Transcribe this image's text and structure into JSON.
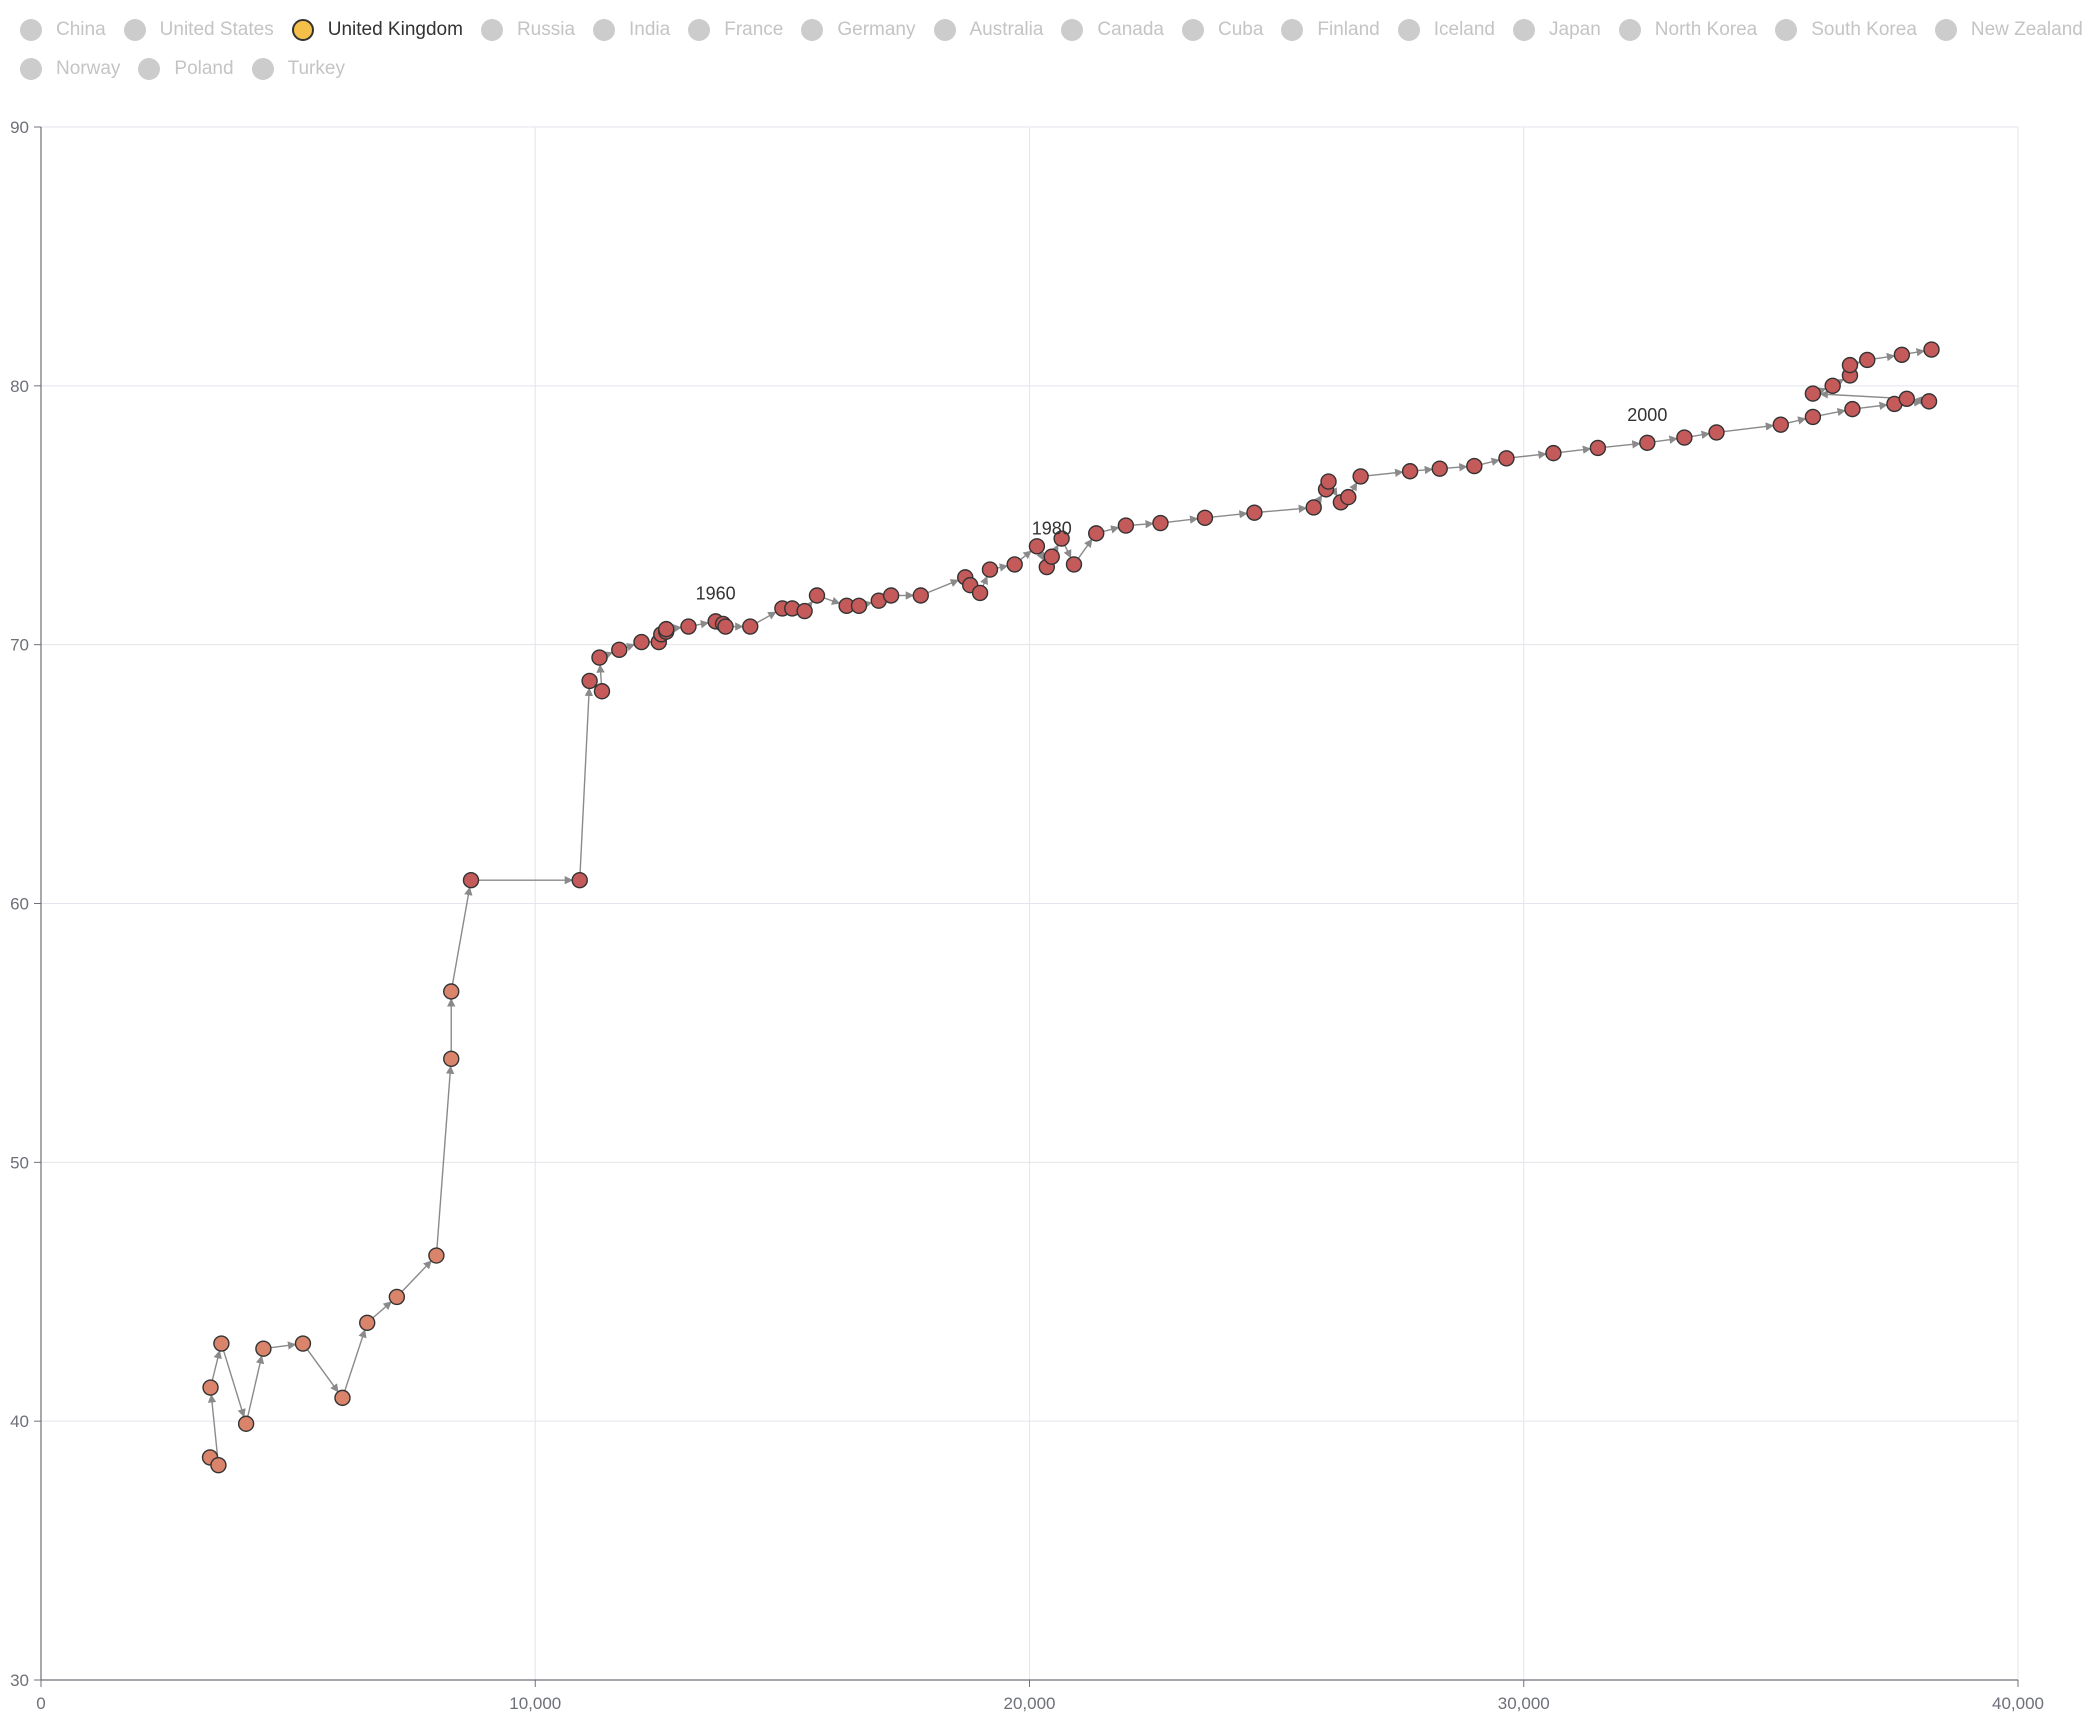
{
  "legend": {
    "items": [
      {
        "label": "China",
        "active": false
      },
      {
        "label": "United States",
        "active": false
      },
      {
        "label": "United Kingdom",
        "active": true
      },
      {
        "label": "Russia",
        "active": false
      },
      {
        "label": "India",
        "active": false
      },
      {
        "label": "France",
        "active": false
      },
      {
        "label": "Germany",
        "active": false
      },
      {
        "label": "Australia",
        "active": false
      },
      {
        "label": "Canada",
        "active": false
      },
      {
        "label": "Cuba",
        "active": false
      },
      {
        "label": "Finland",
        "active": false
      },
      {
        "label": "Iceland",
        "active": false
      },
      {
        "label": "Japan",
        "active": false
      },
      {
        "label": "North Korea",
        "active": false
      },
      {
        "label": "South Korea",
        "active": false
      },
      {
        "label": "New Zealand",
        "active": false
      },
      {
        "label": "Norway",
        "active": false
      },
      {
        "label": "Poland",
        "active": false
      },
      {
        "label": "Turkey",
        "active": false
      }
    ],
    "active_color": "#f5c04a",
    "inactive_color": "#cccccc"
  },
  "chart_data": {
    "type": "scatter",
    "title": "",
    "xlabel": "",
    "ylabel": "",
    "xlim": [
      0,
      40000
    ],
    "ylim": [
      30,
      90
    ],
    "x_ticks": [
      "0",
      "10,000",
      "20,000",
      "30,000",
      "40,000"
    ],
    "y_ticks": [
      "30",
      "40",
      "50",
      "60",
      "70",
      "80",
      "90"
    ],
    "grid": true,
    "series": [
      {
        "name": "United Kingdom",
        "color": "#c55a5a",
        "early_color": "#d9846b",
        "x": [
          3420,
          3590,
          3430,
          3650,
          4150,
          4500,
          5300,
          6100,
          6600,
          7200,
          8000,
          8300,
          8300,
          8700,
          10900,
          11100,
          11350,
          11300,
          11700,
          12150,
          12500,
          12550,
          12650,
          12650,
          13100,
          13650,
          13800,
          13850,
          14350,
          15000,
          15200,
          15450,
          15700,
          16300,
          16550,
          16950,
          17200,
          17800,
          18700,
          18800,
          19000,
          19200,
          19700,
          20150,
          20350,
          20450,
          20650,
          20900,
          21350,
          21950,
          22650,
          23550,
          24550,
          25750,
          26000,
          26050,
          26300,
          26450,
          26700,
          27700,
          28300,
          29000,
          29650,
          30600,
          31500,
          32500,
          33250,
          33900,
          35200,
          35850,
          36650,
          37500,
          38200,
          37750,
          35850,
          36250,
          36600,
          36600,
          36950,
          37650,
          38250
        ],
        "y": [
          38.6,
          38.3,
          41.3,
          43.0,
          39.9,
          42.8,
          43.0,
          40.9,
          43.8,
          44.8,
          46.4,
          54.0,
          56.6,
          60.9,
          60.9,
          68.6,
          68.2,
          69.5,
          69.8,
          70.1,
          70.1,
          70.4,
          70.5,
          70.6,
          70.7,
          70.9,
          70.8,
          70.7,
          70.7,
          71.4,
          71.4,
          71.3,
          71.9,
          71.5,
          71.5,
          71.7,
          71.9,
          71.9,
          72.6,
          72.3,
          72.0,
          72.9,
          73.1,
          73.8,
          73.0,
          73.4,
          74.1,
          73.1,
          74.3,
          74.6,
          74.7,
          74.9,
          75.1,
          75.3,
          76.0,
          76.3,
          75.5,
          75.7,
          76.5,
          76.7,
          76.8,
          76.9,
          77.2,
          77.4,
          77.6,
          77.8,
          78.0,
          78.2,
          78.5,
          78.8,
          79.1,
          79.3,
          79.4,
          79.5,
          79.7,
          80.0,
          80.4,
          80.8,
          81.0,
          81.2,
          81.4
        ],
        "year_labels": [
          {
            "text": "1960",
            "x": 13650,
            "y": 70.9
          },
          {
            "text": "1980",
            "x": 20450,
            "y": 73.4
          },
          {
            "text": "2000",
            "x": 32500,
            "y": 77.8
          }
        ]
      }
    ]
  }
}
